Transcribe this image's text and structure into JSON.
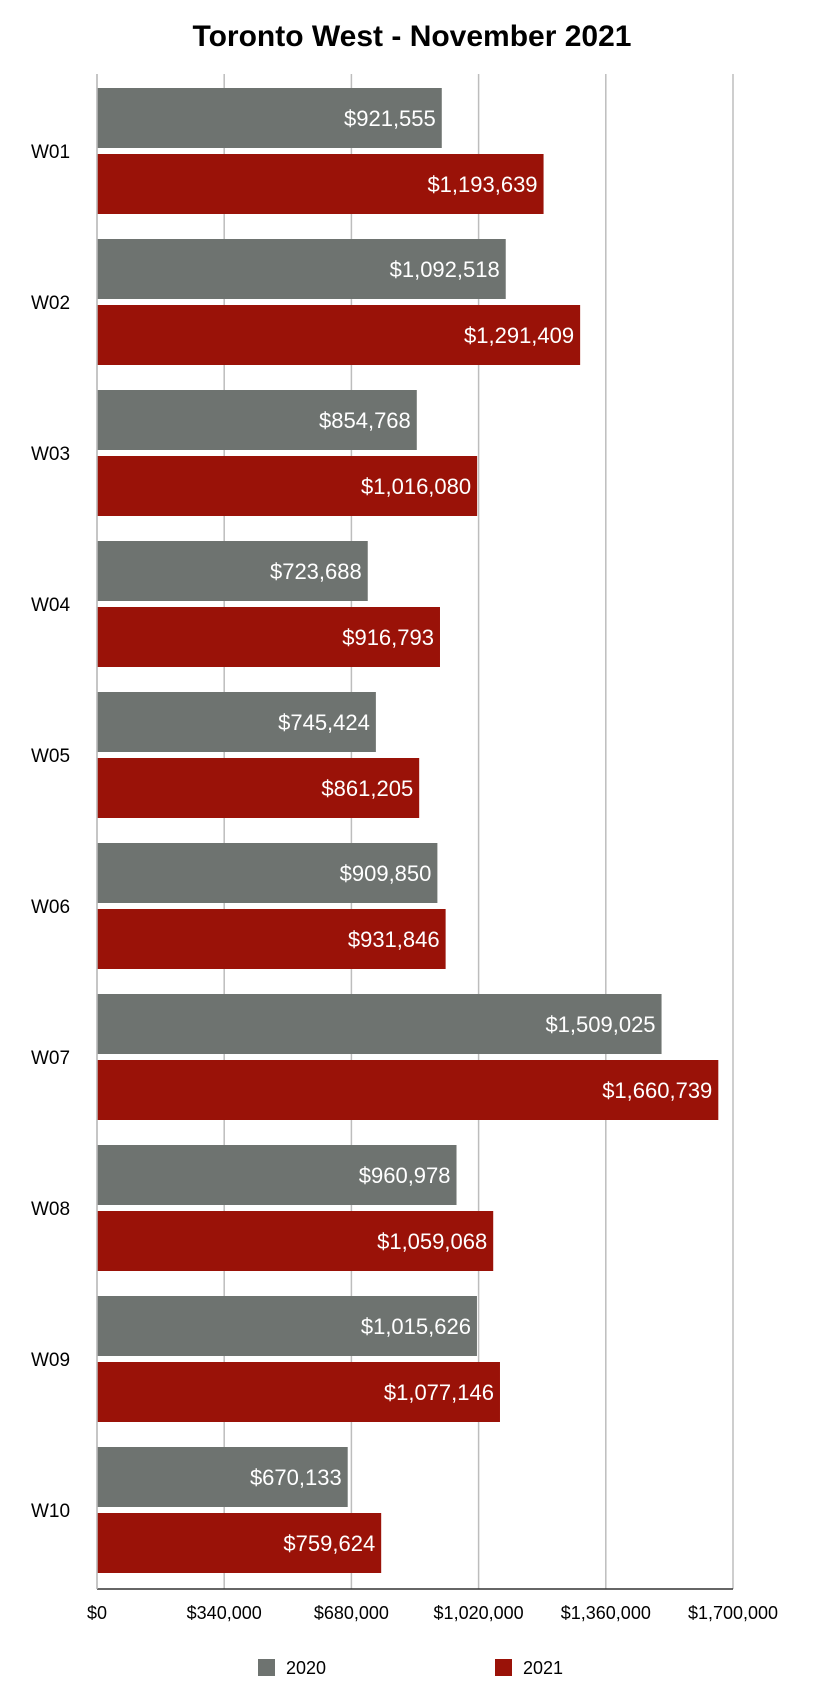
{
  "chart_data": {
    "type": "bar",
    "orientation": "horizontal",
    "title": "Toronto West - November 2021",
    "xlabel": "",
    "ylabel": "",
    "categories": [
      "W01",
      "W02",
      "W03",
      "W04",
      "W05",
      "W06",
      "W07",
      "W08",
      "W09",
      "W10"
    ],
    "series": [
      {
        "name": "2020",
        "color": "#6e7370",
        "values": [
          921555,
          1092518,
          854768,
          723688,
          745424,
          909850,
          1509025,
          960978,
          1015626,
          670133
        ],
        "labels": [
          "$921,555",
          "$1,092,518",
          "$854,768",
          "$723,688",
          "$745,424",
          "$909,850",
          "$1,509,025",
          "$960,978",
          "$1,015,626",
          "$670,133"
        ]
      },
      {
        "name": "2021",
        "color": "#9a1208",
        "values": [
          1193639,
          1291409,
          1016080,
          916793,
          861205,
          931846,
          1660739,
          1059068,
          1077146,
          759624
        ],
        "labels": [
          "$1,193,639",
          "$1,291,409",
          "$1,016,080",
          "$916,793",
          "$861,205",
          "$931,846",
          "$1,660,739",
          "$1,059,068",
          "$1,077,146",
          "$759,624"
        ]
      }
    ],
    "xlim": [
      0,
      1700000
    ],
    "xticks": [
      0,
      340000,
      680000,
      1020000,
      1360000,
      1700000
    ],
    "xtick_labels": [
      "$0",
      "$340,000",
      "$680,000",
      "$1,020,000",
      "$1,360,000",
      "$1,700,000"
    ],
    "grid": true,
    "legend_position": "bottom"
  }
}
